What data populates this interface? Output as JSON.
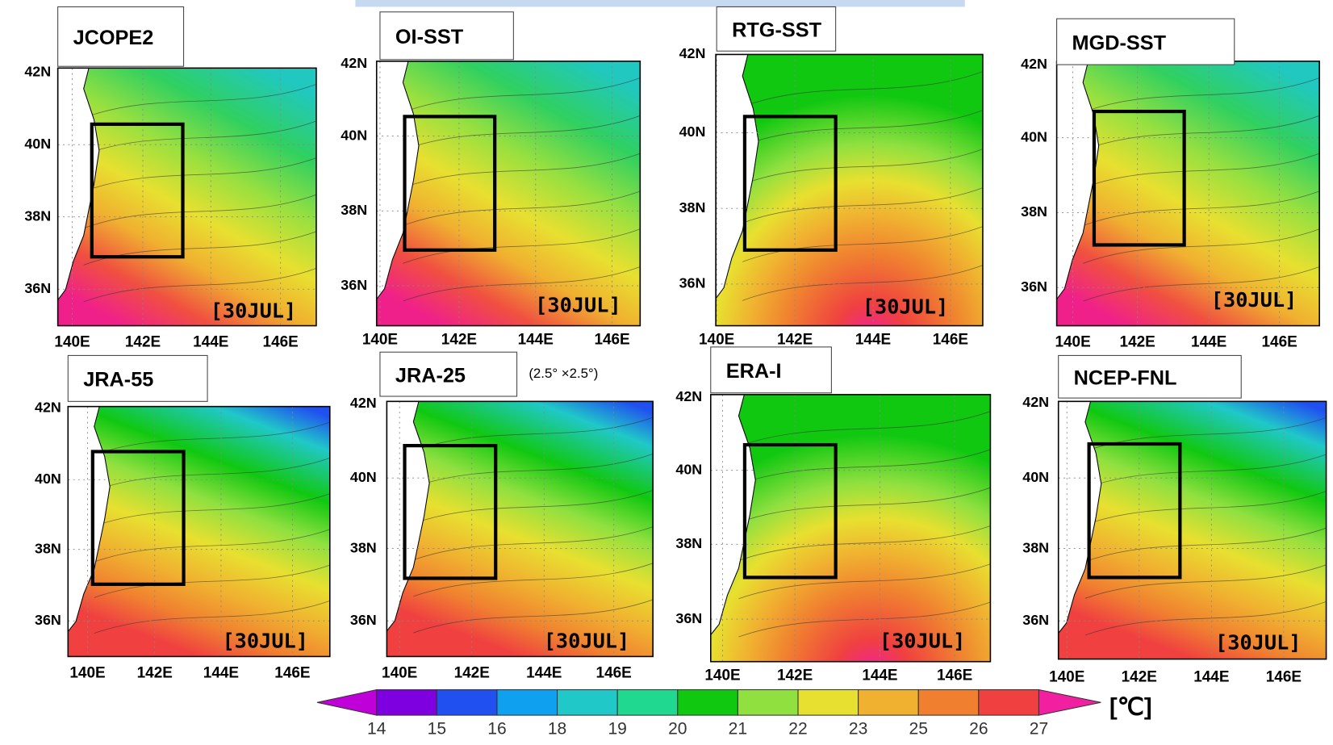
{
  "panels": [
    {
      "title": "JCOPE2",
      "date": "[30JUL]",
      "lat_labels": [
        "42N",
        "40N",
        "38N",
        "36N"
      ],
      "lon_labels": [
        "140E",
        "142E",
        "144E",
        "146E"
      ]
    },
    {
      "title": "OI-SST",
      "date": "[30JUL]",
      "lat_labels": [
        "42N",
        "40N",
        "38N",
        "36N"
      ],
      "lon_labels": [
        "140E",
        "142E",
        "144E",
        "146E"
      ]
    },
    {
      "title": "RTG-SST",
      "date": "[30JUL]",
      "lat_labels": [
        "42N",
        "40N",
        "38N",
        "36N"
      ],
      "lon_labels": [
        "140E",
        "142E",
        "144E",
        "146E"
      ]
    },
    {
      "title": "MGD-SST",
      "date": "[30JUL]",
      "lat_labels": [
        "42N",
        "40N",
        "38N",
        "36N"
      ],
      "lon_labels": [
        "140E",
        "142E",
        "144E",
        "146E"
      ]
    },
    {
      "title": "JRA-55",
      "date": "[30JUL]",
      "lat_labels": [
        "42N",
        "40N",
        "38N",
        "36N"
      ],
      "lon_labels": [
        "140E",
        "142E",
        "144E",
        "146E"
      ]
    },
    {
      "title": "JRA-25",
      "date": "[30JUL]",
      "lat_labels": [
        "42N",
        "40N",
        "38N",
        "36N"
      ],
      "lon_labels": [
        "140E",
        "142E",
        "144E",
        "146E"
      ]
    },
    {
      "title": "ERA-I",
      "date": "[30JUL]",
      "lat_labels": [
        "42N",
        "40N",
        "38N",
        "36N"
      ],
      "lon_labels": [
        "140E",
        "142E",
        "144E",
        "146E"
      ]
    },
    {
      "title": "NCEP-FNL",
      "date": "[30JUL]",
      "lat_labels": [
        "42N",
        "40N",
        "38N",
        "36N"
      ],
      "lon_labels": [
        "140E",
        "142E",
        "144E",
        "146E"
      ]
    }
  ],
  "resolution_note": "(2.5° ×2.5°)",
  "colorbar": {
    "ticks": [
      14,
      15,
      16,
      18,
      19,
      20,
      21,
      22,
      23,
      25,
      26,
      27
    ],
    "unit": "[℃]",
    "colors": [
      "#c000d8",
      "#7e00e0",
      "#2050f0",
      "#10a0f0",
      "#20c8c8",
      "#20d890",
      "#10c810",
      "#90e040",
      "#e8e030",
      "#f0b030",
      "#f08030",
      "#f04040",
      "#f020a0"
    ]
  }
}
